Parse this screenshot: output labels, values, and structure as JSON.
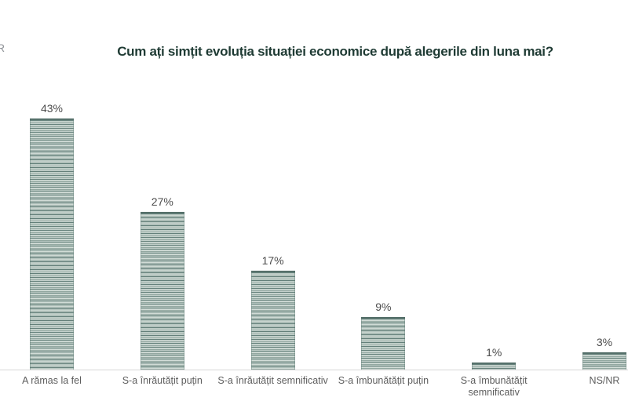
{
  "logo_fragment": "R",
  "chart_data": {
    "type": "bar",
    "title": "Cum ați simțit evoluția situației economice după alegerile din luna mai?",
    "categories": [
      "A rămas la fel",
      "S-a înrăutățit puțin",
      "S-a înrăutățit semnificativ",
      "S-a îmbunătățit puțin",
      "S-a îmbunătățit semnificativ",
      "NS/NR"
    ],
    "values": [
      43,
      27,
      17,
      9,
      1,
      3
    ],
    "value_labels": [
      "43%",
      "27%",
      "17%",
      "9%",
      "1%",
      "3%"
    ],
    "xlabel": "",
    "ylabel": "",
    "ylim": [
      0,
      45
    ],
    "grid": false,
    "legend": "none",
    "bar_style": "horizontal-striped",
    "colors": {
      "background": "#ffffff",
      "title": "#1f3b34",
      "value_label": "#4c4c4c",
      "category_label": "#5d5d5d",
      "axis_line": "#d6d6d6",
      "bar_stripe_dark": "#64807a",
      "bar_stripe_mid": "#93a8a1",
      "bar_stripe_light": "#d2dcd7",
      "bar_border": "#55706a"
    }
  }
}
